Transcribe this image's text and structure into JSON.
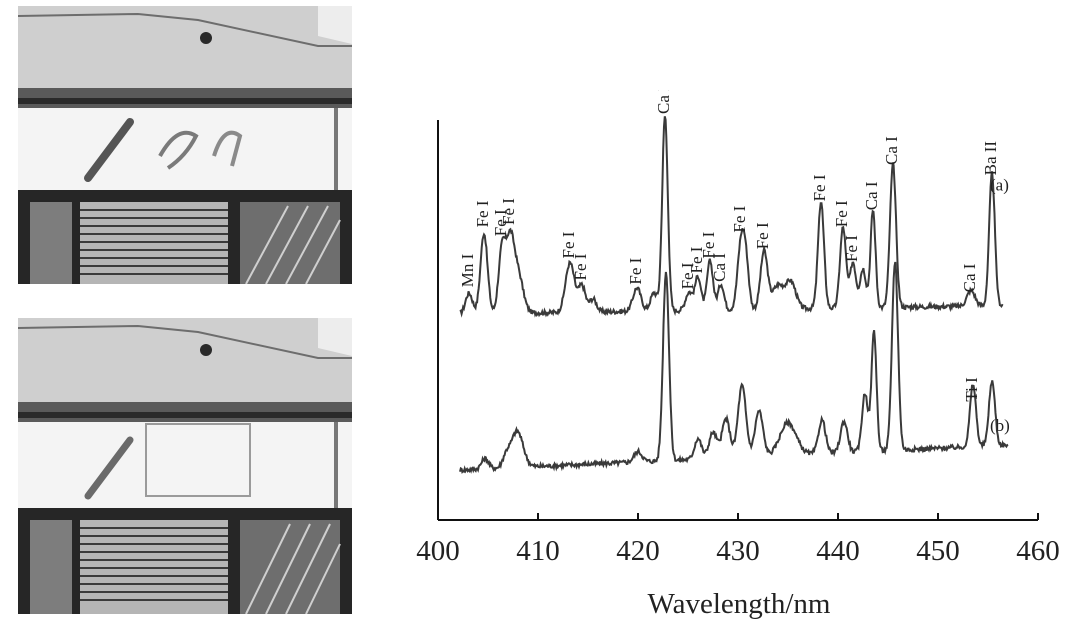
{
  "chart_data": {
    "type": "line",
    "xlabel": "Wavelength/nm",
    "ylabel": "",
    "xlim": [
      400,
      460
    ],
    "xticks": [
      400,
      410,
      420,
      430,
      440,
      450,
      460
    ],
    "grid": false,
    "series": [
      {
        "name": "(a)",
        "baseline": 0.2,
        "x_range": [
          402.2,
          456.5
        ],
        "peaks": [
          {
            "x": 403.1,
            "h": 0.16,
            "w": 0.35,
            "label": "Mn I"
          },
          {
            "x": 404.6,
            "h": 0.62,
            "w": 0.35,
            "label": "Fe I"
          },
          {
            "x": 406.4,
            "h": 0.48,
            "w": 0.35,
            "label": "Fe I"
          },
          {
            "x": 407.2,
            "h": 0.52,
            "w": 0.4,
            "label": "Fe I"
          },
          {
            "x": 408.0,
            "h": 0.3,
            "w": 0.5,
            "label": ""
          },
          {
            "x": 413.2,
            "h": 0.38,
            "w": 0.45,
            "label": "Fe I"
          },
          {
            "x": 414.4,
            "h": 0.2,
            "w": 0.35,
            "label": "Fe I"
          },
          {
            "x": 415.5,
            "h": 0.1,
            "w": 0.35,
            "label": ""
          },
          {
            "x": 419.9,
            "h": 0.18,
            "w": 0.4,
            "label": "Fe I"
          },
          {
            "x": 421.6,
            "h": 0.14,
            "w": 0.35,
            "label": ""
          },
          {
            "x": 422.7,
            "h": 1.5,
            "w": 0.28,
            "label": "Ca I"
          },
          {
            "x": 425.1,
            "h": 0.14,
            "w": 0.35,
            "label": "Fe I"
          },
          {
            "x": 426.0,
            "h": 0.26,
            "w": 0.3,
            "label": "Fe I"
          },
          {
            "x": 427.2,
            "h": 0.38,
            "w": 0.3,
            "label": "Fe I"
          },
          {
            "x": 428.3,
            "h": 0.2,
            "w": 0.3,
            "label": "Ca I"
          },
          {
            "x": 430.3,
            "h": 0.5,
            "w": 0.35,
            "label": "Fe I"
          },
          {
            "x": 430.8,
            "h": 0.32,
            "w": 0.3,
            "label": ""
          },
          {
            "x": 432.6,
            "h": 0.44,
            "w": 0.35,
            "label": "Fe I"
          },
          {
            "x": 434.0,
            "h": 0.18,
            "w": 0.6,
            "label": ""
          },
          {
            "x": 435.3,
            "h": 0.2,
            "w": 0.5,
            "label": ""
          },
          {
            "x": 438.3,
            "h": 0.82,
            "w": 0.3,
            "label": "Fe I"
          },
          {
            "x": 440.5,
            "h": 0.62,
            "w": 0.3,
            "label": "Fe I"
          },
          {
            "x": 441.5,
            "h": 0.35,
            "w": 0.3,
            "label": "Fe I"
          },
          {
            "x": 442.5,
            "h": 0.3,
            "w": 0.3,
            "label": ""
          },
          {
            "x": 443.5,
            "h": 0.75,
            "w": 0.25,
            "label": "Ca I"
          },
          {
            "x": 445.5,
            "h": 1.1,
            "w": 0.3,
            "label": "Ca I"
          },
          {
            "x": 453.3,
            "h": 0.12,
            "w": 0.4,
            "label": "Ca I"
          },
          {
            "x": 455.4,
            "h": 1.02,
            "w": 0.28,
            "label": "Ba II"
          }
        ]
      },
      {
        "name": "(b)",
        "baseline": -1.0,
        "x_range": [
          402.2,
          457.0
        ],
        "peaks": [
          {
            "x": 404.7,
            "h": 0.08,
            "w": 0.35,
            "label": ""
          },
          {
            "x": 406.8,
            "h": 0.08,
            "w": 0.35,
            "label": ""
          },
          {
            "x": 407.9,
            "h": 0.28,
            "w": 0.6,
            "label": ""
          },
          {
            "x": 420.0,
            "h": 0.08,
            "w": 0.4,
            "label": ""
          },
          {
            "x": 422.8,
            "h": 1.45,
            "w": 0.3,
            "label": ""
          },
          {
            "x": 426.0,
            "h": 0.16,
            "w": 0.35,
            "label": ""
          },
          {
            "x": 427.5,
            "h": 0.2,
            "w": 0.4,
            "label": ""
          },
          {
            "x": 428.8,
            "h": 0.3,
            "w": 0.4,
            "label": ""
          },
          {
            "x": 430.4,
            "h": 0.55,
            "w": 0.4,
            "label": ""
          },
          {
            "x": 432.1,
            "h": 0.35,
            "w": 0.4,
            "label": ""
          },
          {
            "x": 435.0,
            "h": 0.25,
            "w": 0.8,
            "label": ""
          },
          {
            "x": 438.4,
            "h": 0.26,
            "w": 0.35,
            "label": ""
          },
          {
            "x": 440.6,
            "h": 0.24,
            "w": 0.35,
            "label": ""
          },
          {
            "x": 442.7,
            "h": 0.45,
            "w": 0.3,
            "label": ""
          },
          {
            "x": 443.6,
            "h": 0.92,
            "w": 0.25,
            "label": ""
          },
          {
            "x": 445.7,
            "h": 1.45,
            "w": 0.3,
            "label": ""
          },
          {
            "x": 453.5,
            "h": 0.48,
            "w": 0.3,
            "label": "Ti I"
          },
          {
            "x": 455.4,
            "h": 0.5,
            "w": 0.3,
            "label": ""
          }
        ]
      }
    ]
  },
  "colors": {
    "trace": "#3a3a3a",
    "axis": "#111111",
    "photo_dark": "#1f1f1f",
    "photo_light": "#f0f0f0"
  }
}
